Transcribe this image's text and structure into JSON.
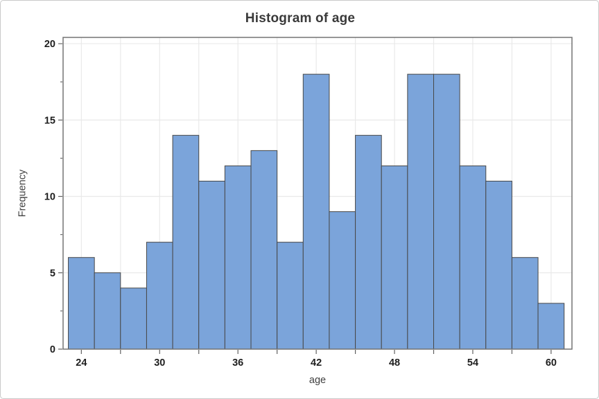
{
  "chart_data": {
    "type": "bar",
    "subtype": "histogram",
    "title": "Histogram of age",
    "xlabel": "age",
    "ylabel": "Frequency",
    "bin_start": 23,
    "bin_width": 2,
    "bin_centers": [
      24,
      26,
      28,
      30,
      32,
      34,
      36,
      38,
      40,
      42,
      44,
      46,
      48,
      50,
      52,
      54,
      56,
      58,
      60
    ],
    "frequencies": [
      6,
      5,
      4,
      7,
      14,
      11,
      12,
      13,
      7,
      18,
      9,
      14,
      12,
      18,
      18,
      12,
      11,
      6,
      3
    ],
    "x_axis": {
      "min": 22.6,
      "max": 61.6,
      "tick_start": 24,
      "tick_end": 60,
      "tick_step": 3,
      "label_step": 6,
      "tick_labels": [
        "24",
        "30",
        "36",
        "42",
        "48",
        "54",
        "60"
      ]
    },
    "y_axis": {
      "min": 0,
      "max": 20.41,
      "major_step": 5,
      "minor_step": 2.5,
      "tick_labels": [
        "0",
        "5",
        "10",
        "15",
        "20"
      ]
    },
    "grid": {
      "vertical": true,
      "horizontal": true,
      "legend": "none"
    },
    "colors": {
      "bar_fill": "#7ba4da",
      "bar_stroke": "#474747",
      "gridline": "#e9e9e9",
      "frame": "#737373",
      "tick": "#606060",
      "tick_label": "#1e1e1e",
      "title": "#3a3a3a",
      "axis_label": "#3f3f3f",
      "background": "#ffffff"
    }
  }
}
